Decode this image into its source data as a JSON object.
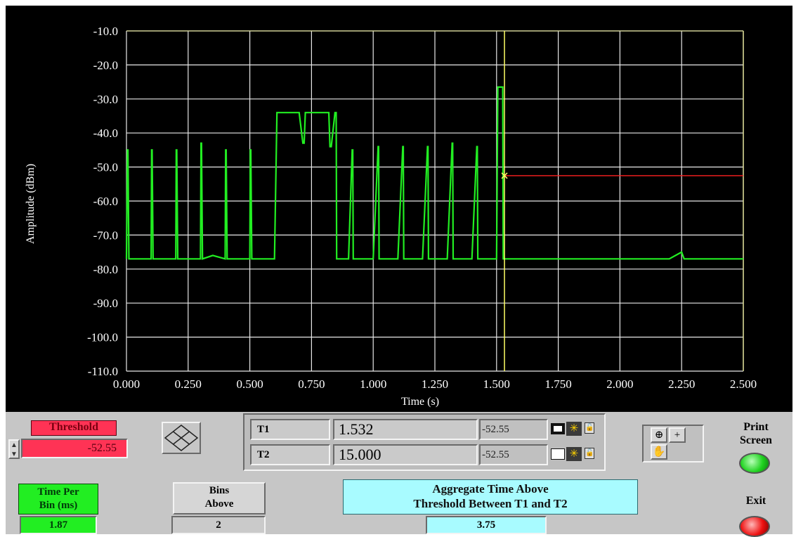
{
  "chart_data": {
    "type": "line",
    "xlabel": "Time (s)",
    "ylabel": "Amplitude (dBm)",
    "xlim": [
      0.0,
      2.5
    ],
    "ylim": [
      -110.0,
      -10.0
    ],
    "x_ticks": [
      "0.000",
      "0.250",
      "0.500",
      "0.750",
      "1.000",
      "1.250",
      "1.500",
      "1.750",
      "2.000",
      "2.250",
      "2.500"
    ],
    "y_ticks": [
      "-10.0",
      "-20.0",
      "-30.0",
      "-40.0",
      "-50.0",
      "-60.0",
      "-70.0",
      "-80.0",
      "-90.0",
      "-100.0",
      "-110.0"
    ],
    "grid": true,
    "series": [
      {
        "color": "#22ee22",
        "x": [
          0.0,
          0.004,
          0.006,
          0.01,
          0.1,
          0.102,
          0.104,
          0.108,
          0.2,
          0.202,
          0.204,
          0.208,
          0.3,
          0.302,
          0.304,
          0.308,
          0.35,
          0.4,
          0.402,
          0.404,
          0.408,
          0.5,
          0.502,
          0.504,
          0.508,
          0.6,
          0.61,
          0.615,
          0.65,
          0.7,
          0.715,
          0.72,
          0.725,
          0.75,
          0.8,
          0.82,
          0.825,
          0.83,
          0.845,
          0.85,
          0.852,
          0.855,
          0.9,
          0.915,
          0.917,
          0.919,
          0.925,
          1.0,
          1.02,
          1.022,
          1.024,
          1.03,
          1.1,
          1.12,
          1.122,
          1.124,
          1.13,
          1.2,
          1.22,
          1.222,
          1.224,
          1.23,
          1.3,
          1.32,
          1.322,
          1.324,
          1.33,
          1.4,
          1.42,
          1.422,
          1.424,
          1.43,
          1.5,
          1.505,
          1.507,
          1.525,
          1.527,
          1.53,
          1.6,
          1.8,
          2.0,
          2.2,
          2.25,
          2.26,
          2.4,
          2.5
        ],
        "y": [
          -77,
          -45,
          -45,
          -77,
          -77,
          -45,
          -45,
          -77,
          -77,
          -45,
          -45,
          -77,
          -77,
          -43,
          -43,
          -77,
          -76,
          -77,
          -45,
          -45,
          -77,
          -77,
          -45,
          -45,
          -77,
          -77,
          -34,
          -34,
          -34,
          -34,
          -43,
          -43,
          -34,
          -34,
          -34,
          -34,
          -44,
          -44,
          -34,
          -34,
          -77,
          -77,
          -77,
          -45,
          -45,
          -77,
          -77,
          -77,
          -44,
          -44,
          -77,
          -77,
          -77,
          -44,
          -44,
          -77,
          -77,
          -77,
          -44,
          -44,
          -77,
          -77,
          -77,
          -43,
          -43,
          -77,
          -77,
          -77,
          -44,
          -44,
          -77,
          -77,
          -77,
          -26.5,
          -26.5,
          -26.5,
          -77,
          -77,
          -77,
          -77,
          -77,
          -77,
          -75,
          -77,
          -77,
          -77
        ]
      }
    ],
    "cursors": [
      {
        "name": "T1",
        "x": 1.532,
        "y": -52.55,
        "color": "#ffff66"
      }
    ],
    "threshold_line": {
      "x_start": 1.532,
      "x_end": 2.5,
      "y": -52.55,
      "color": "#ff2020"
    }
  },
  "controls": {
    "threshold_label": "Threshold",
    "threshold_value": "-52.55",
    "cursors": [
      {
        "name": "T1",
        "time": "1.532",
        "amp": "-52.55"
      },
      {
        "name": "T2",
        "time": "15.000",
        "amp": "-52.55"
      }
    ],
    "print_screen_label": "Print\nScreen",
    "exit_label": "Exit",
    "time_per_bin_label": "Time Per\nBin (ms)",
    "time_per_bin_value": "1.87",
    "bins_above_label": "Bins\nAbove",
    "bins_above_value": "2",
    "aggregate_label": "Aggregate Time Above\nThreshold Between T1 and T2",
    "aggregate_value": "3.75"
  },
  "colors": {
    "plot_background": "#000000",
    "grid": "#e8e8e8",
    "trace": "#22ee22",
    "cursor": "#ffff66",
    "threshold_indicator": "#ff3355",
    "panel": "#c6c6c6"
  }
}
